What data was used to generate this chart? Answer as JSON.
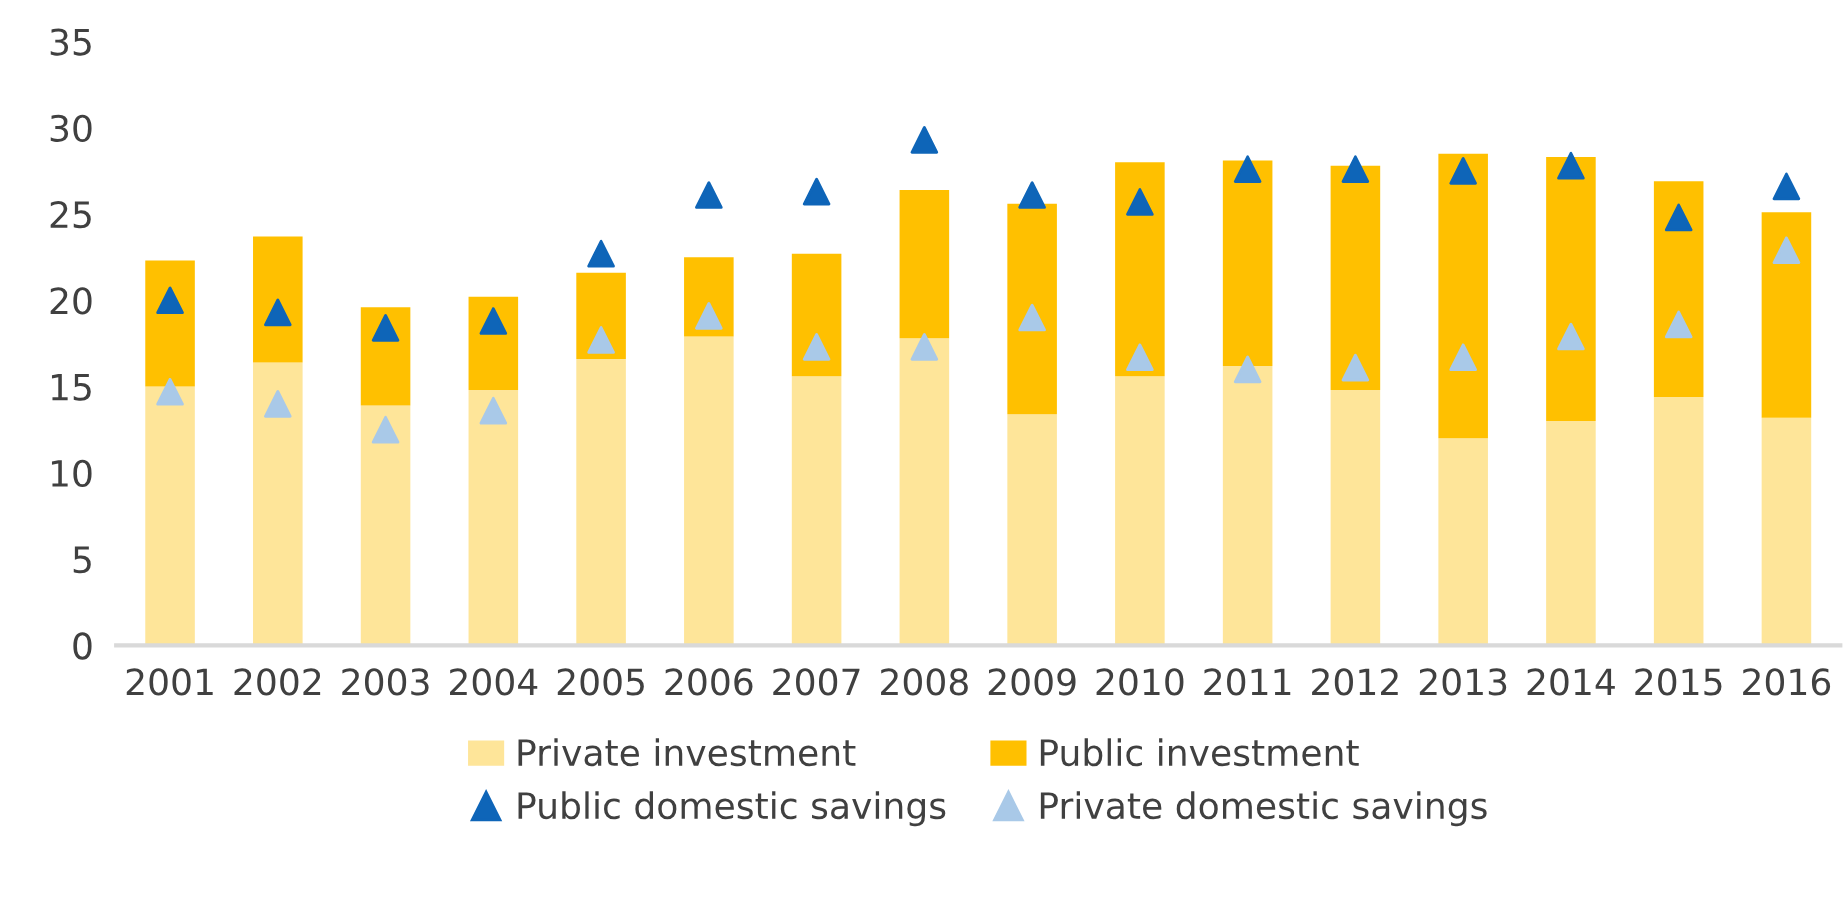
{
  "chart_data": {
    "type": "bar",
    "stacked": true,
    "categories": [
      "2001",
      "2002",
      "2003",
      "2004",
      "2005",
      "2006",
      "2007",
      "2008",
      "2009",
      "2010",
      "2011",
      "2012",
      "2013",
      "2014",
      "2015",
      "2016"
    ],
    "series": [
      {
        "name": "Private investment",
        "color": "#fee599",
        "values": [
          15.0,
          16.4,
          13.9,
          14.8,
          16.6,
          17.9,
          15.6,
          17.8,
          13.4,
          15.6,
          16.2,
          14.8,
          12.0,
          13.0,
          14.4,
          13.2
        ]
      },
      {
        "name": "Public investment",
        "color": "#ffc000",
        "values": [
          7.3,
          7.3,
          5.7,
          5.4,
          5.0,
          4.6,
          7.1,
          8.6,
          12.2,
          12.4,
          11.9,
          13.0,
          16.5,
          15.3,
          12.5,
          11.9
        ]
      },
      {
        "name": "Public domestic savings",
        "type": "scatter",
        "marker": "triangle",
        "color": "#0e65b8",
        "values": [
          20.0,
          19.3,
          18.4,
          18.8,
          22.7,
          26.1,
          26.3,
          29.3,
          26.1,
          25.7,
          27.6,
          27.6,
          27.5,
          27.8,
          24.8,
          26.6
        ]
      },
      {
        "name": "Private domestic savings",
        "type": "scatter",
        "marker": "triangle",
        "color": "#a9c9e8",
        "values": [
          14.7,
          14.0,
          12.5,
          13.6,
          17.7,
          19.1,
          17.3,
          17.3,
          19.0,
          16.7,
          16.0,
          16.1,
          16.7,
          17.9,
          18.6,
          22.9
        ]
      }
    ],
    "ylim": [
      0,
      35
    ],
    "yticks": [
      0,
      5,
      10,
      15,
      20,
      25,
      30,
      35
    ],
    "grid": false,
    "legend": "bottom"
  }
}
